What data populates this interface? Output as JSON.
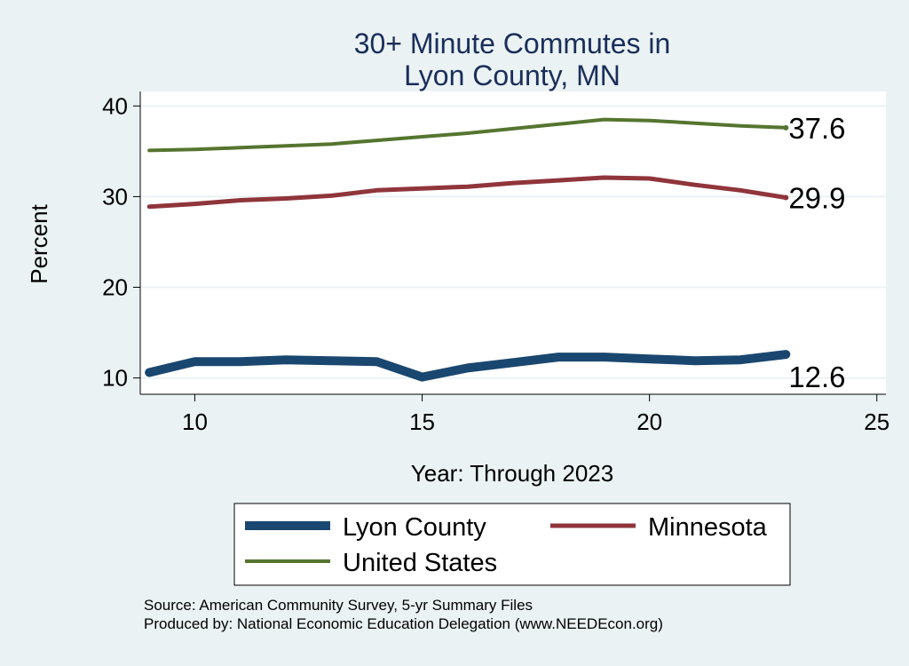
{
  "chart_data": {
    "type": "line",
    "title_lines": [
      "30+ Minute Commutes in",
      "Lyon County, MN"
    ],
    "xlabel": "Year: Through 2023",
    "ylabel": "Percent",
    "xlim": [
      8.8,
      25.2
    ],
    "ylim": [
      8.2,
      41.6
    ],
    "xticks": [
      10,
      15,
      20,
      25
    ],
    "yticks": [
      10,
      20,
      30,
      40
    ],
    "grid": true,
    "legend_position": "bottom",
    "x": [
      9,
      10,
      11,
      12,
      13,
      14,
      15,
      16,
      17,
      18,
      19,
      20,
      21,
      22,
      23
    ],
    "series": [
      {
        "name": "Lyon County",
        "color": "#1a476f",
        "values": [
          10.6,
          11.8,
          11.8,
          12.0,
          11.9,
          11.8,
          10.1,
          11.1,
          11.7,
          12.3,
          12.3,
          12.1,
          11.9,
          12.0,
          12.6
        ],
        "end_label": "12.6"
      },
      {
        "name": "Minnesota",
        "color": "#90353b",
        "values": [
          28.9,
          29.2,
          29.6,
          29.8,
          30.1,
          30.7,
          30.9,
          31.1,
          31.5,
          31.8,
          32.1,
          32.0,
          31.3,
          30.7,
          29.9
        ],
        "end_label": "29.9"
      },
      {
        "name": "United States",
        "color": "#55752f",
        "values": [
          35.1,
          35.2,
          35.4,
          35.6,
          35.8,
          36.2,
          36.6,
          37.0,
          37.5,
          38.0,
          38.5,
          38.4,
          38.1,
          37.8,
          37.6
        ],
        "end_label": "37.6"
      }
    ],
    "notes": [
      "Source: American Community Survey, 5-yr Summary Files",
      "Produced by: National Economic Education Delegation (www.NEEDEcon.org)"
    ]
  }
}
